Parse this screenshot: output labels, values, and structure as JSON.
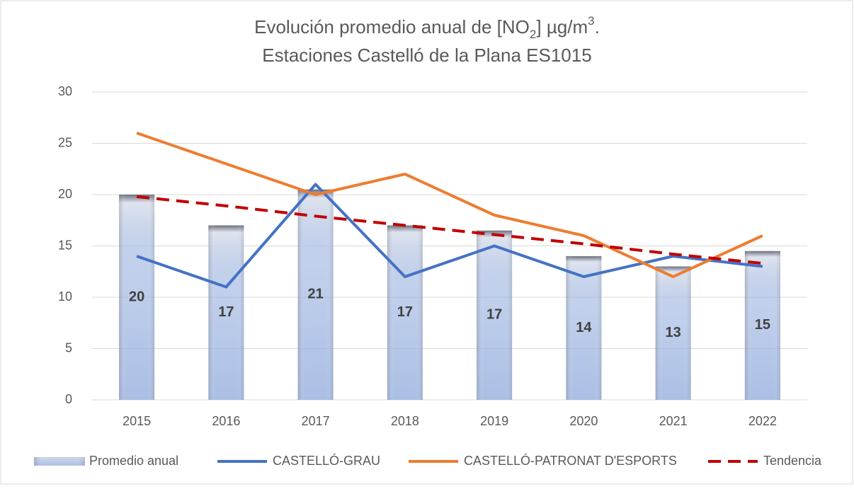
{
  "chart_data": {
    "type": "combo",
    "title": [
      "Evolución promedio anual de [NO",
      "2",
      "] µg/m",
      "3",
      ".",
      "Estaciones Castelló de la Plana ES1015"
    ],
    "categories": [
      "2015",
      "2016",
      "2017",
      "2018",
      "2019",
      "2020",
      "2021",
      "2022"
    ],
    "ylim": [
      0,
      30
    ],
    "yticks": [
      0,
      5,
      10,
      15,
      20,
      25,
      30
    ],
    "grid": true,
    "legend": "bottom",
    "series": [
      {
        "name": "Promedio anual",
        "type": "bar",
        "color": "#8faadc",
        "values": [
          20,
          17,
          20.5,
          17,
          16.5,
          14,
          13,
          14.5
        ],
        "value_labels": [
          "20",
          "17",
          "21",
          "17",
          "17",
          "14",
          "13",
          "15"
        ]
      },
      {
        "name": "CASTELLÓ-GRAU",
        "type": "line",
        "color": "#4472c4",
        "values": [
          14,
          11,
          21,
          12,
          15,
          12,
          14,
          13
        ]
      },
      {
        "name": "CASTELLÓ-PATRONAT D'ESPORTS",
        "type": "line",
        "color": "#ed7d31",
        "values": [
          26,
          23,
          20,
          22,
          18,
          16,
          12,
          16
        ]
      },
      {
        "name": "Tendencia",
        "type": "dashed",
        "color": "#c00000",
        "values": [
          19.8,
          18.9,
          17.9,
          17.0,
          16.1,
          15.2,
          14.2,
          13.3
        ]
      }
    ]
  }
}
